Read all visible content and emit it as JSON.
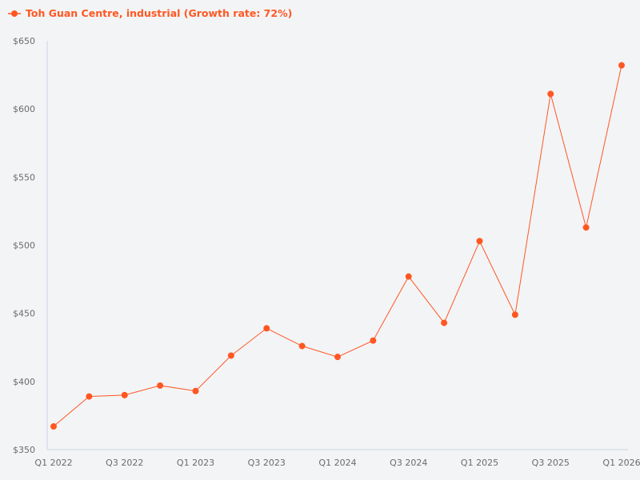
{
  "legend": {
    "label": "Toh Guan Centre, industrial (Growth rate: 72%)",
    "color": "#ff5722"
  },
  "chart_data": {
    "type": "line",
    "title": "",
    "xlabel": "",
    "ylabel": "",
    "ylim": [
      350,
      650
    ],
    "grid": false,
    "legend_position": "top-left",
    "y_ticks": [
      "$350",
      "$400",
      "$450",
      "$500",
      "$550",
      "$600",
      "$650"
    ],
    "y_tick_values": [
      350,
      400,
      450,
      500,
      550,
      600,
      650
    ],
    "x": [
      "Q1 2022",
      "Q2 2022",
      "Q3 2022",
      "Q4 2022",
      "Q1 2023",
      "Q2 2023",
      "Q3 2023",
      "Q4 2023",
      "Q1 2024",
      "Q2 2024",
      "Q3 2024",
      "Q4 2024",
      "Q1 2025",
      "Q2 2025",
      "Q3 2025",
      "Q4 2025",
      "Q1 2026"
    ],
    "x_tick_labels": [
      "Q1 2022",
      "Q3 2022",
      "Q1 2023",
      "Q3 2023",
      "Q1 2024",
      "Q3 2024",
      "Q1 2025",
      "Q3 2025",
      "Q1 2026"
    ],
    "series": [
      {
        "name": "Toh Guan Centre, industrial (Growth rate: 72%)",
        "color": "#ff5722",
        "values": [
          367,
          389,
          390,
          397,
          393,
          419,
          439,
          426,
          418,
          430,
          477,
          443,
          503,
          449,
          611,
          513,
          632
        ]
      }
    ]
  }
}
